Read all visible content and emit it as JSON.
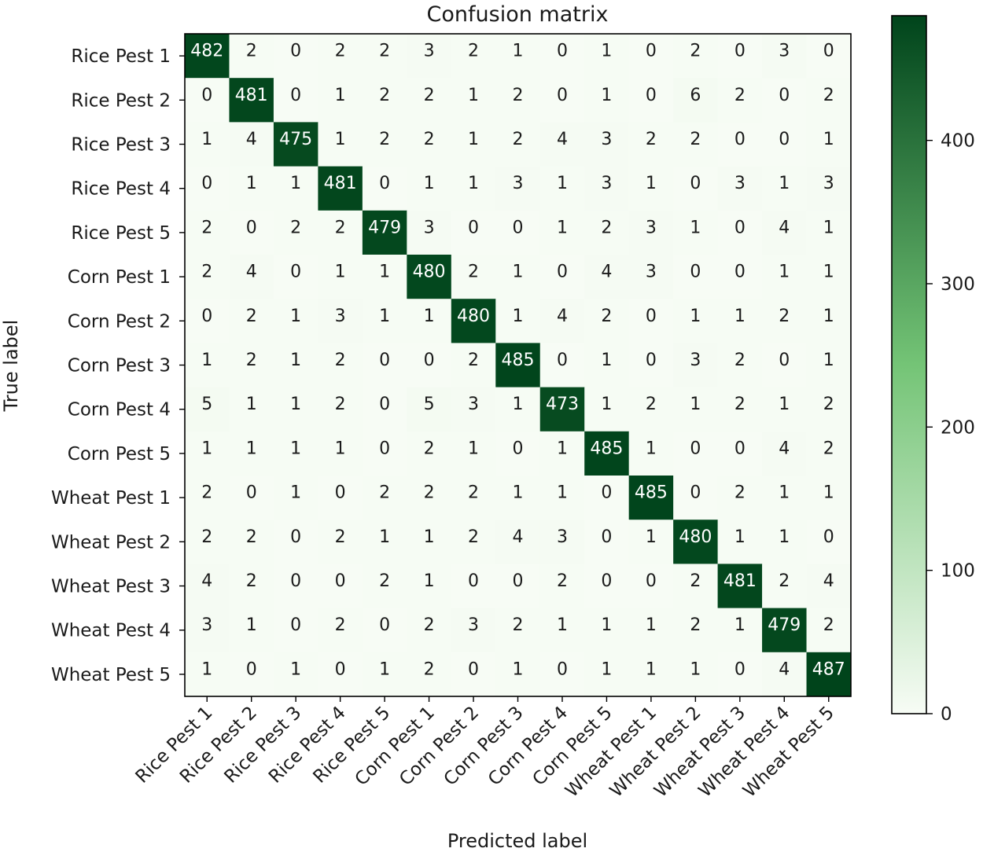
{
  "chart_data": {
    "type": "heatmap",
    "title": "Confusion matrix",
    "xlabel": "Predicted label",
    "ylabel": "True label",
    "x_categories": [
      "Rice Pest 1",
      "Rice Pest 2",
      "Rice Pest 3",
      "Rice Pest 4",
      "Rice Pest 5",
      "Corn Pest 1",
      "Corn Pest 2",
      "Corn Pest 3",
      "Corn Pest 4",
      "Corn Pest 5",
      "Wheat Pest 1",
      "Wheat Pest 2",
      "Wheat Pest 3",
      "Wheat Pest 4",
      "Wheat Pest 5"
    ],
    "y_categories": [
      "Rice Pest 1",
      "Rice Pest 2",
      "Rice Pest 3",
      "Rice Pest 4",
      "Rice Pest 5",
      "Corn Pest 1",
      "Corn Pest 2",
      "Corn Pest 3",
      "Corn Pest 4",
      "Corn Pest 5",
      "Wheat Pest 1",
      "Wheat Pest 2",
      "Wheat Pest 3",
      "Wheat Pest 4",
      "Wheat Pest 5"
    ],
    "matrix": [
      [
        482,
        2,
        0,
        2,
        2,
        3,
        2,
        1,
        0,
        1,
        0,
        2,
        0,
        3,
        0
      ],
      [
        0,
        481,
        0,
        1,
        2,
        2,
        1,
        2,
        0,
        1,
        0,
        6,
        2,
        0,
        2
      ],
      [
        1,
        4,
        475,
        1,
        2,
        2,
        1,
        2,
        4,
        3,
        2,
        2,
        0,
        0,
        1
      ],
      [
        0,
        1,
        1,
        481,
        0,
        1,
        1,
        3,
        1,
        3,
        1,
        0,
        3,
        1,
        3
      ],
      [
        2,
        0,
        2,
        2,
        479,
        3,
        0,
        0,
        1,
        2,
        3,
        1,
        0,
        4,
        1
      ],
      [
        2,
        4,
        0,
        1,
        1,
        480,
        2,
        1,
        0,
        4,
        3,
        0,
        0,
        1,
        1
      ],
      [
        0,
        2,
        1,
        3,
        1,
        1,
        480,
        1,
        4,
        2,
        0,
        1,
        1,
        2,
        1
      ],
      [
        1,
        2,
        1,
        2,
        0,
        0,
        2,
        485,
        0,
        1,
        0,
        3,
        2,
        0,
        1
      ],
      [
        5,
        1,
        1,
        2,
        0,
        5,
        3,
        1,
        473,
        1,
        2,
        1,
        2,
        1,
        2
      ],
      [
        1,
        1,
        1,
        1,
        0,
        2,
        1,
        0,
        1,
        485,
        1,
        0,
        0,
        4,
        2
      ],
      [
        2,
        0,
        1,
        0,
        2,
        2,
        2,
        1,
        1,
        0,
        485,
        0,
        2,
        1,
        1
      ],
      [
        2,
        2,
        0,
        2,
        1,
        1,
        2,
        4,
        3,
        0,
        1,
        480,
        1,
        1,
        0
      ],
      [
        4,
        2,
        0,
        0,
        2,
        1,
        0,
        0,
        2,
        0,
        0,
        2,
        481,
        2,
        4
      ],
      [
        3,
        1,
        0,
        2,
        0,
        2,
        3,
        2,
        1,
        1,
        1,
        2,
        1,
        479,
        2
      ],
      [
        1,
        0,
        1,
        0,
        1,
        2,
        0,
        1,
        0,
        1,
        1,
        1,
        0,
        4,
        487
      ]
    ],
    "colorbar": {
      "min": 0,
      "max": 487,
      "ticks": [
        0,
        100,
        200,
        300,
        400
      ],
      "colormap": "Greens",
      "color_low": "#f7fcf5",
      "color_mid": "#74c476",
      "color_high": "#00441b"
    },
    "grid": false
  }
}
